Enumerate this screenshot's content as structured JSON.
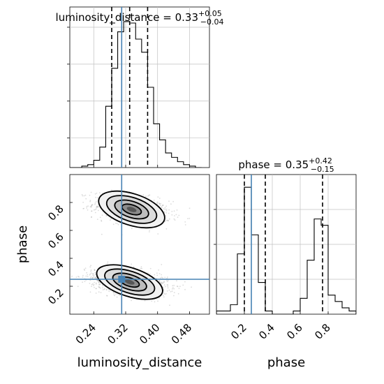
{
  "colors": {
    "truth": "#4682b4",
    "hist": "#000000",
    "grid": "#c0c0c0",
    "quantile": "#000000"
  },
  "chart_data": {
    "type": "corner",
    "parameters": [
      "luminosity_distance",
      "phase"
    ],
    "truths": {
      "luminosity_distance": 0.31,
      "phase": 0.25
    },
    "titles": {
      "luminosity_distance": {
        "name": "luminosity_distance",
        "value": "0.33",
        "upper": "+0.05",
        "lower": "−0.04"
      },
      "phase": {
        "name": "phase",
        "value": "0.35",
        "upper": "+0.42",
        "lower": "−0.15"
      }
    },
    "xlabels": {
      "luminosity_distance": "luminosity_distance",
      "phase": "phase"
    },
    "ylabel_phase": "phase",
    "luminosity_distance_hist": {
      "xlim": [
        0.18,
        0.53
      ],
      "ticks": [
        "0.24",
        "0.32",
        "0.40",
        "0.48"
      ],
      "tick_values": [
        0.24,
        0.32,
        0.4,
        0.48
      ],
      "quantiles": [
        0.285,
        0.33,
        0.375
      ],
      "bin_edges": [
        0.18,
        0.195,
        0.21,
        0.225,
        0.24,
        0.255,
        0.27,
        0.285,
        0.3,
        0.315,
        0.33,
        0.345,
        0.36,
        0.375,
        0.39,
        0.405,
        0.42,
        0.435,
        0.45,
        0.465,
        0.48,
        0.495,
        0.51
      ],
      "counts": [
        0,
        0,
        1,
        2,
        5,
        14,
        42,
        68,
        93,
        100,
        99,
        88,
        79,
        55,
        30,
        19,
        10,
        7,
        4,
        2,
        1,
        0
      ]
    },
    "phase_hist": {
      "xlim": [
        0.0,
        1.0
      ],
      "ticks": [
        "0.2",
        "0.4",
        "0.6",
        "0.8"
      ],
      "tick_values": [
        0.2,
        0.4,
        0.6,
        0.8
      ],
      "quantiles": [
        0.2,
        0.35,
        0.76
      ],
      "bin_edges": [
        0.0,
        0.05,
        0.1,
        0.15,
        0.2,
        0.25,
        0.3,
        0.35,
        0.4,
        0.45,
        0.5,
        0.55,
        0.6,
        0.65,
        0.7,
        0.75,
        0.8,
        0.85,
        0.9,
        0.95,
        1.0
      ],
      "counts": [
        1,
        1,
        3,
        19,
        40,
        25,
        10,
        1,
        0,
        0,
        0,
        1,
        5,
        17,
        30,
        28,
        6,
        4,
        2,
        1
      ]
    },
    "joint": {
      "xlim": [
        0.18,
        0.53
      ],
      "ylim": [
        0.0,
        1.0
      ],
      "yticks": [
        "0.2",
        "0.4",
        "0.6",
        "0.8"
      ],
      "ytick_values": [
        0.2,
        0.4,
        0.6,
        0.8
      ],
      "modes": [
        {
          "x": 0.335,
          "y": 0.75,
          "sx": 0.042,
          "sy": 0.055,
          "weight": 0.4
        },
        {
          "x": 0.33,
          "y": 0.23,
          "sx": 0.042,
          "sy": 0.05,
          "weight": 0.6
        }
      ]
    }
  }
}
